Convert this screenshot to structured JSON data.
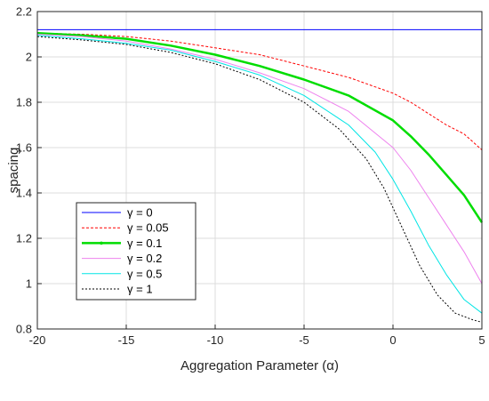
{
  "chart_data": {
    "type": "line",
    "title": "",
    "xlabel": "Aggregation Parameter (α)",
    "ylabel": "spacing",
    "xlim": [
      -20,
      5
    ],
    "ylim": [
      0.8,
      2.2
    ],
    "xticks": [
      "-20",
      "-15",
      "-10",
      "-5",
      "0",
      "5"
    ],
    "yticks": [
      "0.8",
      "1",
      "1.2",
      "1.4",
      "1.6",
      "1.8",
      "2",
      "2.2"
    ],
    "grid": true,
    "legend_position": "lower-left",
    "series": [
      {
        "name": "γ = 0",
        "color": "#0000ff",
        "style": "solid",
        "x": [
          -20,
          -15,
          -10,
          -5,
          0,
          5
        ],
        "y": [
          2.12,
          2.12,
          2.12,
          2.12,
          2.12,
          2.12
        ]
      },
      {
        "name": "γ = 0.05",
        "color": "#ff0000",
        "style": "dashed",
        "x": [
          -20,
          -17.5,
          -15,
          -12.5,
          -10,
          -7.5,
          -5,
          -2.5,
          0,
          1,
          2,
          3,
          4,
          5
        ],
        "y": [
          2.105,
          2.1,
          2.09,
          2.07,
          2.04,
          2.01,
          1.96,
          1.91,
          1.84,
          1.8,
          1.75,
          1.7,
          1.66,
          1.59
        ]
      },
      {
        "name": "γ = 0.1",
        "color": "#00dd00",
        "style": "solid-thick",
        "x": [
          -20,
          -17.5,
          -15,
          -12.5,
          -10,
          -7.5,
          -5,
          -2.5,
          0,
          1,
          2,
          3,
          4,
          5
        ],
        "y": [
          2.105,
          2.095,
          2.08,
          2.05,
          2.01,
          1.96,
          1.9,
          1.83,
          1.72,
          1.65,
          1.57,
          1.48,
          1.39,
          1.27
        ]
      },
      {
        "name": "γ = 0.2",
        "color": "#ee82ee",
        "style": "solid",
        "x": [
          -20,
          -17.5,
          -15,
          -12.5,
          -10,
          -7.5,
          -5,
          -2.5,
          0,
          1,
          2,
          3,
          4,
          5
        ],
        "y": [
          2.1,
          2.09,
          2.07,
          2.035,
          1.99,
          1.93,
          1.86,
          1.76,
          1.6,
          1.5,
          1.38,
          1.26,
          1.14,
          1.0
        ]
      },
      {
        "name": "γ = 0.5",
        "color": "#00e5e5",
        "style": "solid",
        "x": [
          -20,
          -17.5,
          -15,
          -12.5,
          -10,
          -7.5,
          -5,
          -2.5,
          -1,
          0,
          1,
          2,
          3,
          4,
          5
        ],
        "y": [
          2.095,
          2.08,
          2.06,
          2.03,
          1.98,
          1.92,
          1.83,
          1.7,
          1.58,
          1.46,
          1.32,
          1.17,
          1.04,
          0.93,
          0.87
        ]
      },
      {
        "name": "γ = 1",
        "color": "#000000",
        "style": "dotted",
        "x": [
          -20,
          -17.5,
          -15,
          -12.5,
          -10,
          -7.5,
          -5,
          -3,
          -1.5,
          -0.5,
          0.5,
          1.5,
          2.5,
          3.5,
          4.5,
          5
        ],
        "y": [
          2.09,
          2.075,
          2.055,
          2.02,
          1.97,
          1.9,
          1.8,
          1.68,
          1.55,
          1.42,
          1.25,
          1.08,
          0.95,
          0.87,
          0.84,
          0.83
        ]
      }
    ]
  }
}
